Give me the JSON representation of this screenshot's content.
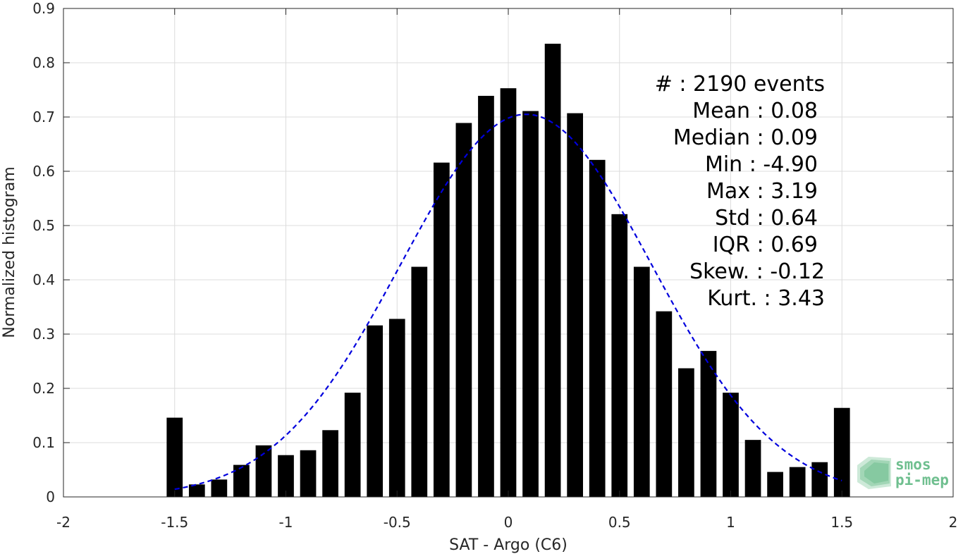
{
  "chart_data": {
    "type": "bar",
    "xlabel": "SAT - Argo (C6)",
    "ylabel": "Normalized histogram",
    "xlim": [
      -2,
      2
    ],
    "ylim": [
      0,
      0.9
    ],
    "x_ticks": [
      -2,
      -1.5,
      -1,
      -0.5,
      0,
      0.5,
      1,
      1.5,
      2
    ],
    "x_tick_labels": [
      "-2",
      "-1.5",
      "-1",
      "-0.5",
      "0",
      "0.5",
      "1",
      "1.5",
      "2"
    ],
    "y_ticks": [
      0,
      0.1,
      0.2,
      0.3,
      0.4,
      0.5,
      0.6,
      0.7,
      0.8,
      0.9
    ],
    "y_tick_labels": [
      "0",
      "0.1",
      "0.2",
      "0.3",
      "0.4",
      "0.5",
      "0.6",
      "0.7",
      "0.8",
      "0.9"
    ],
    "grid": true,
    "bar_color": "#000000",
    "bars": {
      "x": [
        -1.5,
        -1.4,
        -1.3,
        -1.2,
        -1.1,
        -1.0,
        -0.9,
        -0.8,
        -0.7,
        -0.6,
        -0.5,
        -0.4,
        -0.3,
        -0.2,
        -0.1,
        0.0,
        0.1,
        0.2,
        0.3,
        0.4,
        0.5,
        0.6,
        0.7,
        0.8,
        0.9,
        1.0,
        1.1,
        1.2,
        1.3,
        1.4,
        1.5
      ],
      "values": [
        0.146,
        0.023,
        0.032,
        0.059,
        0.095,
        0.077,
        0.086,
        0.123,
        0.192,
        0.316,
        0.328,
        0.424,
        0.616,
        0.689,
        0.739,
        0.753,
        0.711,
        0.835,
        0.707,
        0.621,
        0.521,
        0.424,
        0.342,
        0.237,
        0.269,
        0.192,
        0.105,
        0.046,
        0.055,
        0.064,
        0.164
      ]
    },
    "fit_curve": {
      "style": "dashed",
      "color": "#0000dd",
      "mean": 0.08,
      "std": 0.565,
      "peak": 0.705,
      "x_range": [
        -1.5,
        1.5
      ]
    },
    "stats": [
      {
        "label": "#  : 2190 events"
      },
      {
        "label": "Mean : 0.08"
      },
      {
        "label": "Median : 0.09"
      },
      {
        "label": "Min : -4.90"
      },
      {
        "label": "Max : 3.19"
      },
      {
        "label": "Std : 0.64"
      },
      {
        "label": "IQR : 0.69"
      },
      {
        "label": "Skew. : -0.12"
      },
      {
        "label": "Kurt. : 3.43"
      }
    ],
    "logo": {
      "line1": "smos",
      "line2": "pi-mep",
      "color": "#6fbf8f"
    }
  }
}
